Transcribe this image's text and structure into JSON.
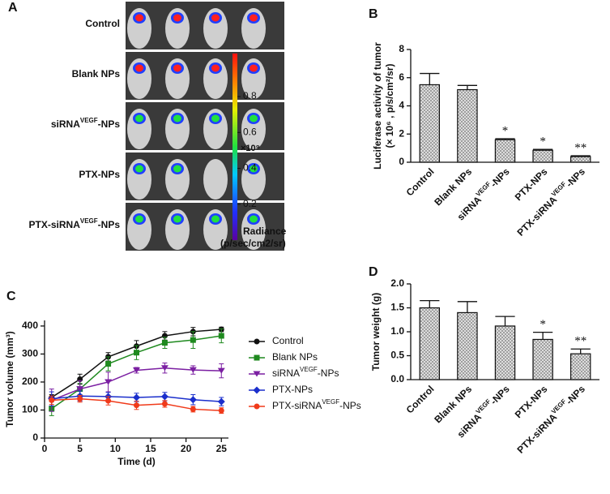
{
  "image_panel": {
    "label": "A",
    "rows": [
      "Control",
      "Blank NPs",
      "siRNAVEGF-NPs",
      "PTX-NPs",
      "PTX-siRNAVEGF-NPs"
    ],
    "colorbar": {
      "clim": [
        0,
        1.04
      ],
      "ticks": [
        0.2,
        0.4,
        0.6,
        0.8
      ],
      "multiplier": "×10⁹",
      "title": "Radiance",
      "unit": "(p/sec/cm2/sr)"
    }
  },
  "chart_data": [
    {
      "type": "bar",
      "panel": "B",
      "ylabel": "Luciferase activity of tumor",
      "ylabel_unit": "(× 10⁶ , p/s/cm²/sr)",
      "categories": [
        "Control",
        "Blank NPs",
        "siRNAVEGF-NPs",
        "PTX-NPs",
        "PTX-siRNAVEGF-NPs"
      ],
      "values": [
        5.5,
        5.15,
        1.6,
        0.85,
        0.4
      ],
      "errors": [
        0.8,
        0.3,
        0.07,
        0.06,
        0.06
      ],
      "annotations": [
        null,
        null,
        "*",
        "*",
        "**"
      ],
      "ylim": [
        0,
        8
      ],
      "yticks": [
        0,
        2,
        4,
        6,
        8
      ],
      "color": "#d8d8d8"
    },
    {
      "type": "line",
      "panel": "C",
      "xlabel": "Time (d)",
      "ylabel": "Tumor volume (mm³)",
      "x": [
        1,
        5,
        9,
        13,
        17,
        21,
        25
      ],
      "xlim": [
        0,
        26
      ],
      "xticks": [
        0,
        5,
        10,
        15,
        20,
        25
      ],
      "ylim": [
        0,
        420
      ],
      "yticks": [
        0,
        100,
        200,
        300,
        400
      ],
      "series": [
        {
          "name": "Control",
          "color": "#111111",
          "marker": "circle",
          "values": [
            145,
            210,
            290,
            328,
            365,
            380,
            388
          ],
          "errors": [
            10,
            18,
            15,
            20,
            15,
            15,
            8
          ]
        },
        {
          "name": "Blank NPs",
          "color": "#1f8a1f",
          "marker": "square",
          "values": [
            105,
            175,
            265,
            305,
            340,
            350,
            365
          ],
          "errors": [
            25,
            20,
            25,
            25,
            20,
            30,
            25
          ]
        },
        {
          "name": "siRNAVEGF-NPs",
          "color": "#7b1fa2",
          "marker": "triangle",
          "values": [
            135,
            175,
            200,
            242,
            250,
            243,
            240
          ],
          "errors": [
            40,
            30,
            35,
            10,
            18,
            15,
            25
          ]
        },
        {
          "name": "PTX-NPs",
          "color": "#1b2fcc",
          "marker": "diamond",
          "values": [
            140,
            150,
            148,
            145,
            148,
            137,
            130
          ],
          "errors": [
            25,
            18,
            15,
            15,
            15,
            18,
            15
          ]
        },
        {
          "name": "PTX-siRNAVEGF-NPs",
          "color": "#f03a1a",
          "marker": "circle",
          "values": [
            135,
            140,
            133,
            117,
            122,
            103,
            98
          ],
          "errors": [
            15,
            12,
            15,
            15,
            12,
            10,
            10
          ]
        }
      ]
    },
    {
      "type": "bar",
      "panel": "D",
      "ylabel": "Tumor weight (g)",
      "categories": [
        "Control",
        "Blank NPs",
        "siRNAVEGF-NPs",
        "PTX-NPs",
        "PTX-siRNAVEGF-NPs"
      ],
      "values": [
        1.5,
        1.4,
        1.12,
        0.84,
        0.54
      ],
      "errors": [
        0.15,
        0.23,
        0.2,
        0.15,
        0.1
      ],
      "annotations": [
        null,
        null,
        null,
        "*",
        "**"
      ],
      "ylim": [
        0,
        2.0
      ],
      "yticks": [
        {
          "value": 0,
          "label": "0.0"
        },
        {
          "value": 0.5,
          "label": "0.5"
        },
        {
          "value": 1,
          "label": "1.0"
        },
        {
          "value": 1.5,
          "label": "1.5"
        },
        {
          "value": 2,
          "label": "2.0"
        }
      ],
      "color": "#d8d8d8"
    }
  ]
}
